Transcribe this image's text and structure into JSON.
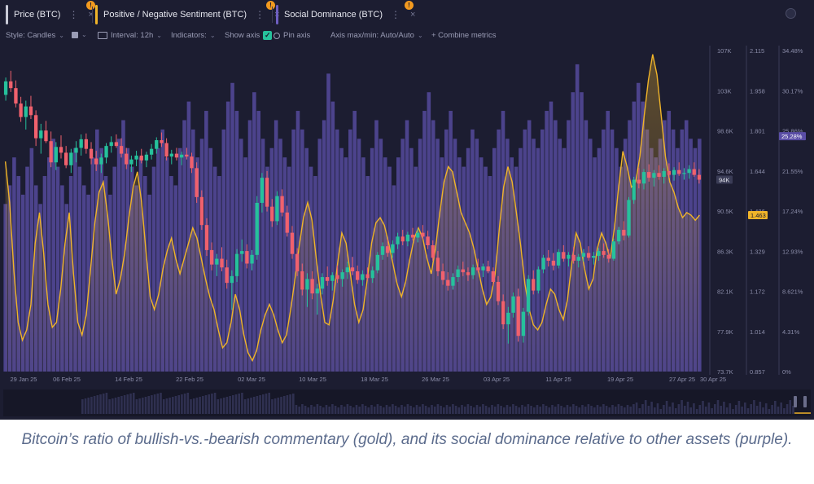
{
  "tabs": [
    {
      "label": "Price (BTC)",
      "color": "#c9cad6"
    },
    {
      "label": "Positive / Negative Sentiment (BTC)",
      "color": "#f0b429"
    },
    {
      "label": "Social Dominance (BTC)",
      "color": "#6e5fc2"
    }
  ],
  "tab_icons": {
    "kebab": "⋮",
    "close": "×",
    "badge": "!"
  },
  "toolbar": {
    "style": "Style: Candles",
    "interval": "Interval: 12h",
    "indicators": "Indicators:",
    "show_axis": "Show axis",
    "pin_axis": "Pin axis",
    "axis_maxmin": "Axis max/min: Auto/Auto",
    "combine": "+ Combine metrics"
  },
  "caption": "Bitcoin’s ratio of bullish-vs.-bearish commentary (gold), and its social dominance relative to other assets (purple).",
  "chart_data": {
    "type": "candlestick+line+bar",
    "x_ticks": [
      "29 Jan 25",
      "06 Feb 25",
      "14 Feb 25",
      "22 Feb 25",
      "02 Mar 25",
      "10 Mar 25",
      "18 Mar 25",
      "26 Mar 25",
      "03 Apr 25",
      "11 Apr 25",
      "19 Apr 25",
      "27 Apr 25",
      "30 Apr 25"
    ],
    "price_axis": {
      "ticks": [
        "107K",
        "103K",
        "98.6K",
        "94.6K",
        "90.5K",
        "86.3K",
        "82.1K",
        "77.9K",
        "73.7K"
      ],
      "min": 73700,
      "max": 107000
    },
    "sentiment_axis": {
      "ticks": [
        "2.115",
        "1.958",
        "1.801",
        "1.644",
        "1.486",
        "1.329",
        "1.172",
        "1.014",
        "0.857"
      ],
      "min": 0.857,
      "max": 2.115
    },
    "dominance_axis": {
      "ticks": [
        "34.48%",
        "30.17%",
        "25.86%",
        "21.55%",
        "17.24%",
        "12.93%",
        "8.621%",
        "4.31%",
        "0%"
      ],
      "min": 0,
      "max": 34.48
    },
    "current_values": {
      "price": "94K",
      "sentiment": "1.463",
      "dominance": "25.28%"
    },
    "colors": {
      "up": "#26c19c",
      "down": "#f0616d",
      "sentiment": "#f0b429",
      "dominance": "#5a4ea6",
      "background": "#1c1d31"
    },
    "candles": [
      [
        102400,
        104200,
        101800,
        103800
      ],
      [
        103800,
        104900,
        102700,
        103100
      ],
      [
        103100,
        103900,
        101100,
        101500
      ],
      [
        101500,
        102200,
        99600,
        100100
      ],
      [
        100100,
        101800,
        98800,
        101200
      ],
      [
        101200,
        102300,
        99900,
        100300
      ],
      [
        100300,
        100800,
        97100,
        97900
      ],
      [
        97900,
        99400,
        96300,
        98700
      ],
      [
        98700,
        99700,
        97400,
        97600
      ],
      [
        97600,
        98600,
        94900,
        95400
      ],
      [
        95400,
        97500,
        94600,
        97000
      ],
      [
        97000,
        98200,
        95800,
        96400
      ],
      [
        96400,
        97100,
        94800,
        95100
      ],
      [
        95100,
        96800,
        94300,
        96400
      ],
      [
        96400,
        97600,
        95400,
        96900
      ],
      [
        96900,
        98300,
        96100,
        97800
      ],
      [
        97800,
        98400,
        96300,
        96800
      ],
      [
        96800,
        97500,
        95200,
        95800
      ],
      [
        95800,
        96600,
        94500,
        95200
      ],
      [
        95200,
        96300,
        94300,
        95900
      ],
      [
        95900,
        97400,
        95300,
        97100
      ],
      [
        97100,
        98100,
        96400,
        97500
      ],
      [
        97500,
        98300,
        96900,
        97100
      ],
      [
        97100,
        97900,
        95900,
        96300
      ],
      [
        96300,
        96900,
        94700,
        95200
      ],
      [
        95200,
        96100,
        94400,
        95700
      ],
      [
        95700,
        96600,
        95000,
        96100
      ],
      [
        96100,
        96800,
        95300,
        95600
      ],
      [
        95600,
        96500,
        94900,
        96200
      ],
      [
        96200,
        97300,
        95700,
        96800
      ],
      [
        96800,
        98000,
        96300,
        97700
      ],
      [
        97700,
        98500,
        97000,
        97400
      ],
      [
        97400,
        97900,
        95600,
        96000
      ],
      [
        96000,
        96700,
        95200,
        96300
      ],
      [
        96300,
        96900,
        95600,
        95900
      ],
      [
        95900,
        96500,
        95100,
        96200
      ],
      [
        96200,
        96900,
        95700,
        96000
      ],
      [
        96000,
        96400,
        94300,
        94800
      ],
      [
        94800,
        95400,
        91200,
        91800
      ],
      [
        91800,
        92500,
        88400,
        88900
      ],
      [
        88900,
        89600,
        85700,
        86300
      ],
      [
        86300,
        87100,
        84200,
        84800
      ],
      [
        84800,
        85900,
        83600,
        85400
      ],
      [
        85400,
        86600,
        84100,
        84500
      ],
      [
        84500,
        85300,
        82300,
        82900
      ],
      [
        82900,
        84200,
        80100,
        83600
      ],
      [
        83600,
        86400,
        83000,
        85900
      ],
      [
        85900,
        87400,
        85100,
        86200
      ],
      [
        86200,
        86900,
        84400,
        84900
      ],
      [
        84900,
        86300,
        84200,
        85800
      ],
      [
        85800,
        91900,
        85300,
        91200
      ],
      [
        91200,
        94300,
        90200,
        93800
      ],
      [
        93800,
        94500,
        90300,
        90800
      ],
      [
        90800,
        91600,
        88700,
        89300
      ],
      [
        89300,
        92400,
        88900,
        91900
      ],
      [
        91900,
        92600,
        89800,
        90200
      ],
      [
        90200,
        90900,
        87700,
        88100
      ],
      [
        88100,
        88800,
        85400,
        85900
      ],
      [
        85900,
        86500,
        83600,
        84100
      ],
      [
        84100,
        84900,
        81600,
        82200
      ],
      [
        82200,
        83900,
        80400,
        83300
      ],
      [
        83300,
        84100,
        81200,
        81800
      ],
      [
        81800,
        82800,
        79600,
        82300
      ],
      [
        82300,
        83900,
        81700,
        83500
      ],
      [
        83500,
        84600,
        82600,
        83100
      ],
      [
        83100,
        84000,
        82100,
        83700
      ],
      [
        83700,
        84700,
        82900,
        83300
      ],
      [
        83300,
        84300,
        82500,
        84000
      ],
      [
        84000,
        85100,
        83300,
        84500
      ],
      [
        84500,
        85600,
        83700,
        84100
      ],
      [
        84100,
        84700,
        82800,
        83200
      ],
      [
        83200,
        84200,
        82600,
        83800
      ],
      [
        83800,
        84500,
        83100,
        83400
      ],
      [
        83400,
        84600,
        82900,
        84200
      ],
      [
        84200,
        86100,
        83900,
        85800
      ],
      [
        85800,
        87100,
        85300,
        86700
      ],
      [
        86700,
        87400,
        85600,
        86000
      ],
      [
        86000,
        87300,
        85500,
        86900
      ],
      [
        86900,
        88100,
        86400,
        87700
      ],
      [
        87700,
        88400,
        86800,
        87200
      ],
      [
        87200,
        88200,
        86700,
        87900
      ],
      [
        87900,
        88600,
        87300,
        87600
      ],
      [
        87600,
        88500,
        87100,
        88100
      ],
      [
        88100,
        88900,
        87400,
        87700
      ],
      [
        87700,
        88300,
        86400,
        86800
      ],
      [
        86800,
        87300,
        85200,
        85500
      ],
      [
        85500,
        86200,
        83600,
        84100
      ],
      [
        84100,
        84900,
        82700,
        83200
      ],
      [
        83200,
        84000,
        82100,
        82600
      ],
      [
        82600,
        83900,
        82200,
        83500
      ],
      [
        83500,
        84700,
        83000,
        84300
      ],
      [
        84300,
        85100,
        83600,
        84000
      ],
      [
        84000,
        84500,
        83100,
        83700
      ],
      [
        83700,
        84800,
        83300,
        84500
      ],
      [
        84500,
        85400,
        84000,
        84200
      ],
      [
        84200,
        84900,
        83500,
        84600
      ],
      [
        84600,
        85200,
        83900,
        84100
      ],
      [
        84100,
        84500,
        82600,
        83000
      ],
      [
        83000,
        83600,
        80600,
        81000
      ],
      [
        81000,
        81700,
        78100,
        78600
      ],
      [
        78600,
        80400,
        76600,
        79800
      ],
      [
        79800,
        81900,
        79300,
        81500
      ],
      [
        81500,
        82300,
        76800,
        77400
      ],
      [
        77400,
        80300,
        76700,
        79900
      ],
      [
        79900,
        83700,
        79500,
        83300
      ],
      [
        83300,
        84200,
        81700,
        82100
      ],
      [
        82100,
        84600,
        81800,
        84300
      ],
      [
        84300,
        85800,
        83900,
        85500
      ],
      [
        85500,
        86300,
        84600,
        85200
      ],
      [
        85200,
        86000,
        84200,
        84700
      ],
      [
        84700,
        86400,
        84400,
        86100
      ],
      [
        86100,
        86800,
        85100,
        85400
      ],
      [
        85400,
        86100,
        84600,
        85800
      ],
      [
        85800,
        86600,
        84900,
        85200
      ],
      [
        85200,
        85900,
        84500,
        85600
      ],
      [
        85600,
        86400,
        85100,
        86000
      ],
      [
        86000,
        86700,
        85200,
        85500
      ],
      [
        85500,
        86100,
        84800,
        85700
      ],
      [
        85700,
        86500,
        85200,
        86200
      ],
      [
        86200,
        87000,
        85500,
        85800
      ],
      [
        85800,
        86400,
        85000,
        85400
      ],
      [
        85400,
        87500,
        85200,
        87200
      ],
      [
        87200,
        88700,
        86900,
        88400
      ],
      [
        88400,
        89300,
        87300,
        87800
      ],
      [
        87800,
        91800,
        87600,
        91500
      ],
      [
        91500,
        93900,
        91100,
        93600
      ],
      [
        93600,
        94800,
        92700,
        93200
      ],
      [
        93200,
        94700,
        92600,
        94400
      ],
      [
        94400,
        95200,
        93400,
        93800
      ],
      [
        93800,
        94600,
        92900,
        94300
      ],
      [
        94300,
        95100,
        93600,
        93900
      ],
      [
        93900,
        94800,
        93200,
        94500
      ],
      [
        94500,
        95300,
        93800,
        94100
      ],
      [
        94100,
        94900,
        93500,
        94600
      ],
      [
        94600,
        95400,
        94000,
        94200
      ],
      [
        94200,
        94800,
        93600,
        94300
      ],
      [
        94300,
        95100,
        93700,
        94700
      ],
      [
        94700,
        95400,
        93900,
        94100
      ],
      [
        94100,
        94700,
        93200,
        93600
      ]
    ],
    "sentiment": [
      1.68,
      1.52,
      1.25,
      1.05,
      0.98,
      1.02,
      1.12,
      1.36,
      1.48,
      1.32,
      1.12,
      1.03,
      1.05,
      1.18,
      1.36,
      1.48,
      1.24,
      1.05,
      1.0,
      1.08,
      1.26,
      1.44,
      1.56,
      1.6,
      1.47,
      1.3,
      1.16,
      1.22,
      1.32,
      1.46,
      1.58,
      1.64,
      1.52,
      1.33,
      1.15,
      1.1,
      1.16,
      1.26,
      1.33,
      1.38,
      1.3,
      1.24,
      1.3,
      1.36,
      1.42,
      1.38,
      1.3,
      1.22,
      1.15,
      1.1,
      1.02,
      0.95,
      0.97,
      1.05,
      1.16,
      1.1,
      1.0,
      0.93,
      0.9,
      0.94,
      1.02,
      1.08,
      1.12,
      1.08,
      1.02,
      0.97,
      1.0,
      1.1,
      1.22,
      1.35,
      1.46,
      1.52,
      1.45,
      1.3,
      1.16,
      1.05,
      1.04,
      1.14,
      1.28,
      1.4,
      1.36,
      1.24,
      1.12,
      1.05,
      1.1,
      1.22,
      1.36,
      1.44,
      1.46,
      1.43,
      1.36,
      1.28,
      1.2,
      1.15,
      1.21,
      1.3,
      1.38,
      1.42,
      1.38,
      1.3,
      1.24,
      1.34,
      1.48,
      1.6,
      1.66,
      1.64,
      1.56,
      1.48,
      1.44,
      1.4,
      1.34,
      1.26,
      1.18,
      1.12,
      1.15,
      1.24,
      1.42,
      1.58,
      1.66,
      1.6,
      1.48,
      1.35,
      1.2,
      1.1,
      1.04,
      1.02,
      1.05,
      1.12,
      1.18,
      1.16,
      1.1,
      1.06,
      1.14,
      1.28,
      1.4,
      1.36,
      1.26,
      1.18,
      1.22,
      1.34,
      1.4,
      1.36,
      1.3,
      1.42,
      1.58,
      1.72,
      1.66,
      1.58,
      1.6,
      1.7,
      1.86,
      2.0,
      2.1,
      2.02,
      1.86,
      1.7,
      1.6,
      1.56,
      1.5,
      1.46,
      1.48,
      1.47,
      1.45,
      1.47
    ],
    "dominance": [
      18,
      20,
      23,
      21,
      19,
      22,
      24,
      20,
      18,
      21,
      23,
      25,
      22,
      20,
      18,
      21,
      24,
      22,
      20,
      19,
      23,
      26,
      24,
      21,
      19,
      22,
      25,
      27,
      24,
      22,
      20,
      23,
      21,
      19,
      22,
      24,
      26,
      23,
      21,
      20,
      24,
      27,
      29,
      26,
      23,
      25,
      28,
      24,
      22,
      21,
      26,
      29,
      31,
      28,
      25,
      23,
      27,
      30,
      28,
      25,
      22,
      24,
      27,
      25,
      23,
      22,
      26,
      28,
      26,
      24,
      22,
      21,
      25,
      27,
      32,
      29,
      26,
      24,
      23,
      26,
      28,
      25,
      23,
      21,
      24,
      27,
      25,
      23,
      22,
      20,
      23,
      25,
      27,
      24,
      22,
      25,
      28,
      30,
      27,
      25,
      23,
      26,
      28,
      25,
      23,
      22,
      24,
      26,
      25,
      23,
      22,
      21,
      24,
      26,
      28,
      25,
      23,
      22,
      24,
      26,
      27,
      25,
      24,
      26,
      28,
      29,
      27,
      25,
      24,
      27,
      30,
      33,
      30,
      27,
      25,
      23,
      24,
      26,
      28,
      26,
      24,
      22,
      25,
      27,
      29,
      31,
      29,
      26,
      24,
      23,
      25,
      27,
      28,
      26,
      24,
      26,
      27,
      25,
      24,
      25
    ],
    "dominance_overlay": [
      0,
      0,
      0,
      0,
      0,
      0,
      0,
      0,
      0,
      0,
      0,
      0,
      0,
      0,
      0,
      0,
      0,
      0,
      0,
      0,
      0,
      0,
      0,
      0,
      0,
      0,
      0,
      0,
      0,
      0,
      0,
      0,
      0,
      0,
      0,
      0,
      0,
      0,
      0,
      0,
      0,
      0,
      0,
      0,
      0,
      0,
      0,
      0,
      0,
      0,
      0,
      0,
      0,
      0,
      0,
      0,
      0,
      0,
      0,
      0,
      0,
      0,
      0,
      0,
      0,
      0,
      0,
      0,
      0,
      0,
      0,
      0,
      0,
      0,
      0,
      0,
      0,
      0,
      0,
      0,
      0,
      0,
      0,
      0,
      0,
      0,
      0,
      0,
      0,
      0,
      0,
      0,
      0,
      0,
      0,
      0,
      0,
      0,
      0,
      0,
      0,
      0,
      0,
      0,
      0,
      0,
      0,
      0,
      0,
      0,
      0,
      0,
      0,
      0,
      0,
      0,
      0,
      0,
      0,
      0,
      0,
      0,
      0,
      0,
      0,
      0,
      0,
      0,
      0,
      0,
      0,
      0,
      0,
      0,
      0,
      0,
      0,
      0,
      0,
      0,
      0,
      0,
      0,
      0,
      0,
      0,
      0,
      0,
      0,
      0,
      0,
      0,
      0,
      0,
      0,
      0,
      0,
      0,
      0,
      0
    ]
  }
}
